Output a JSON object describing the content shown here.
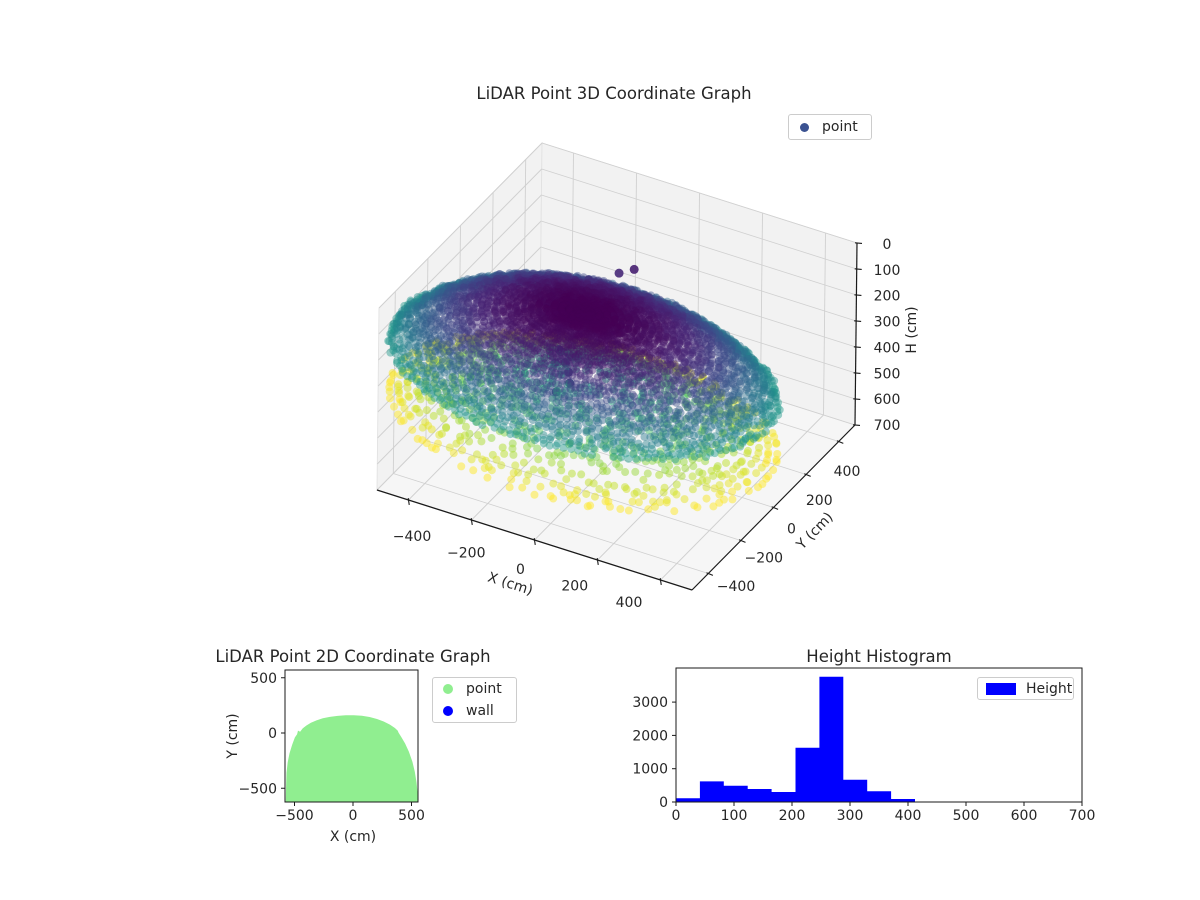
{
  "figure": {
    "background": "#ffffff",
    "text_color": "#262626"
  },
  "palette": {
    "viridis_stops": [
      [
        68,
        1,
        84
      ],
      [
        72,
        36,
        117
      ],
      [
        62,
        74,
        137
      ],
      [
        49,
        104,
        142
      ],
      [
        38,
        130,
        142
      ],
      [
        31,
        158,
        137
      ],
      [
        53,
        183,
        121
      ],
      [
        109,
        205,
        89
      ],
      [
        180,
        222,
        44
      ],
      [
        253,
        231,
        37
      ]
    ],
    "point2d_color": "#90ee90",
    "wall_color": "#0000ff",
    "hist_color": "#0000ff",
    "legend3d_marker": "#3b5291",
    "navy_cluster": "#2e4578"
  },
  "chart_data": [
    {
      "type": "scatter",
      "projection": "3d",
      "title": "LiDAR Point 3D Coordinate Graph",
      "xlabel": "X (cm)",
      "ylabel": "Y (cm)",
      "zlabel": "H (cm)",
      "xticks": [
        -400,
        -200,
        0,
        200,
        400
      ],
      "yticks": [
        -400,
        -200,
        0,
        200,
        400
      ],
      "zticks": [
        0,
        100,
        200,
        300,
        400,
        500,
        600,
        700
      ],
      "xlim": [
        -500,
        500
      ],
      "ylim": [
        -500,
        500
      ],
      "zlim": [
        0,
        700
      ],
      "z_axis_inverted": true,
      "legend": [
        {
          "label": "point",
          "marker_color": "#3b5291"
        }
      ],
      "cloud": {
        "description": "LiDAR dome point cloud colored by height H (viridis)",
        "footprint_center": [
          10,
          -225
        ],
        "footprint_rx": 580,
        "footprint_ry": 400,
        "h_max": 412,
        "shell": {
          "elev_min": 28,
          "elev_max": 88,
          "elev_step": 2,
          "rays": 170,
          "keep": 0.92
        },
        "floor": {
          "rn_min": 0.12,
          "rn_max": 1.0,
          "rings": 20,
          "density": 150,
          "keep": 0.55,
          "h_base": 240,
          "h_gain": 175,
          "h_pow": 1.6
        },
        "wall_points": [
          [
            -185,
            -55,
            318
          ],
          [
            -165,
            -40,
            322
          ],
          [
            -150,
            -55,
            315
          ],
          [
            -132,
            -45,
            320
          ],
          [
            -115,
            -60,
            318
          ],
          [
            -100,
            -50,
            316
          ],
          [
            -145,
            -25,
            330
          ],
          [
            -128,
            -70,
            340
          ],
          [
            -105,
            -95,
            352
          ],
          [
            -88,
            -120,
            372
          ],
          [
            -150,
            -90,
            336
          ],
          [
            -120,
            -140,
            405
          ]
        ],
        "extra_points": [
          [
            0,
            100,
            40
          ],
          [
            -35,
            75,
            52
          ]
        ]
      }
    },
    {
      "type": "scatter",
      "projection": "2d",
      "title": "LiDAR Point 2D Coordinate Graph",
      "xlabel": "X (cm)",
      "ylabel": "Y (cm)",
      "xticks": [
        -500,
        0,
        500
      ],
      "yticks": [
        500,
        0,
        -500
      ],
      "legend": [
        {
          "label": "point",
          "color": "#90ee90"
        },
        {
          "label": "wall",
          "color": "#0000ff"
        }
      ],
      "blob_color": "#90ee90",
      "blob_outline": [
        [
          -575,
          -640
        ],
        [
          -572,
          -480
        ],
        [
          -568,
          -360
        ],
        [
          -558,
          -265
        ],
        [
          -543,
          -185
        ],
        [
          -520,
          -105
        ],
        [
          -497,
          -40
        ],
        [
          -478,
          -12
        ],
        [
          -470,
          22
        ],
        [
          -452,
          12
        ],
        [
          -430,
          42
        ],
        [
          -398,
          68
        ],
        [
          -360,
          92
        ],
        [
          -312,
          114
        ],
        [
          -258,
          133
        ],
        [
          -198,
          146
        ],
        [
          -132,
          155
        ],
        [
          -62,
          160
        ],
        [
          8,
          161
        ],
        [
          76,
          156
        ],
        [
          142,
          145
        ],
        [
          205,
          127
        ],
        [
          262,
          104
        ],
        [
          315,
          76
        ],
        [
          358,
          45
        ],
        [
          382,
          22
        ],
        [
          390,
          2
        ],
        [
          412,
          -35
        ],
        [
          445,
          -95
        ],
        [
          478,
          -170
        ],
        [
          508,
          -260
        ],
        [
          528,
          -350
        ],
        [
          543,
          -445
        ],
        [
          552,
          -540
        ],
        [
          556,
          -640
        ]
      ]
    },
    {
      "type": "bar",
      "subtype": "histogram",
      "title": "Height Histogram",
      "legend": [
        {
          "label": "Height",
          "color": "#0000ff"
        }
      ],
      "bin_start": 0,
      "bin_width": 41.2,
      "values": [
        110,
        620,
        490,
        390,
        300,
        1630,
        3760,
        670,
        320,
        90
      ],
      "xticks": [
        0,
        100,
        200,
        300,
        400,
        500,
        600,
        700
      ],
      "yticks": [
        0,
        1000,
        2000,
        3000
      ],
      "xlim": [
        0,
        700
      ],
      "ylim": [
        0,
        4024
      ]
    }
  ]
}
